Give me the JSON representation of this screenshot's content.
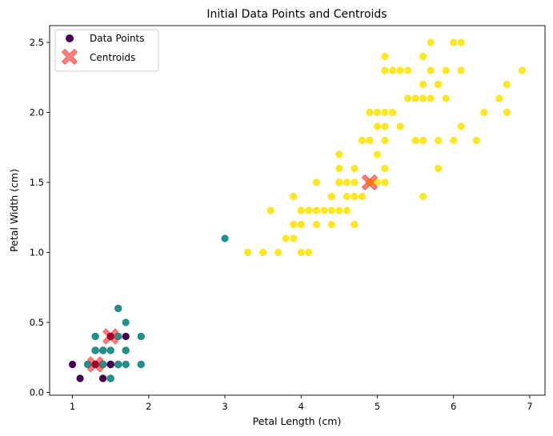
{
  "chart_data": {
    "type": "scatter",
    "title": "Initial Data Points and Centroids",
    "xlabel": "Petal Length (cm)",
    "ylabel": "Petal Width (cm)",
    "xlim": [
      0.7,
      7.2
    ],
    "ylim": [
      -0.02,
      2.62
    ],
    "xticks": [
      1,
      2,
      3,
      4,
      5,
      6,
      7
    ],
    "yticks": [
      0.0,
      0.5,
      1.0,
      1.5,
      2.0,
      2.5
    ],
    "xtick_labels": [
      "1",
      "2",
      "3",
      "4",
      "5",
      "6",
      "7"
    ],
    "ytick_labels": [
      "0.0",
      "0.5",
      "1.0",
      "1.5",
      "2.0",
      "2.5"
    ],
    "grid": false,
    "legend": {
      "placement": "top-left",
      "entries": [
        {
          "label": "Data Points",
          "marker": "circle",
          "color": "#440154"
        },
        {
          "label": "Centroids",
          "marker": "x",
          "color": "#ff0000"
        }
      ]
    },
    "colors": {
      "cluster_0": "#440154",
      "cluster_1": "#21918c",
      "cluster_2": "#fde725",
      "centroid": "#ff0000"
    },
    "series": [
      {
        "cluster": 0,
        "color": "#440154",
        "points": [
          [
            1.4,
            0.2
          ],
          [
            1.4,
            0.2
          ],
          [
            1.3,
            0.2
          ],
          [
            1.5,
            0.2
          ],
          [
            1.4,
            0.2
          ],
          [
            1.7,
            0.4
          ],
          [
            1.4,
            0.3
          ],
          [
            1.5,
            0.2
          ],
          [
            1.4,
            0.2
          ],
          [
            1.5,
            0.1
          ],
          [
            1.5,
            0.2
          ],
          [
            1.6,
            0.2
          ],
          [
            1.4,
            0.1
          ],
          [
            1.1,
            0.1
          ],
          [
            1.2,
            0.2
          ],
          [
            1.5,
            0.4
          ],
          [
            1.3,
            0.4
          ],
          [
            1.4,
            0.3
          ],
          [
            1.7,
            0.3
          ],
          [
            1.5,
            0.3
          ],
          [
            1.7,
            0.2
          ],
          [
            1.5,
            0.4
          ],
          [
            1.0,
            0.2
          ],
          [
            1.9,
            0.2
          ],
          [
            1.6,
            0.2
          ],
          [
            1.6,
            0.4
          ],
          [
            1.5,
            0.2
          ],
          [
            1.4,
            0.2
          ],
          [
            1.6,
            0.2
          ],
          [
            1.5,
            0.4
          ],
          [
            1.5,
            0.1
          ],
          [
            1.4,
            0.2
          ],
          [
            1.2,
            0.2
          ],
          [
            1.3,
            0.2
          ],
          [
            1.4,
            0.1
          ],
          [
            1.3,
            0.2
          ],
          [
            1.5,
            0.2
          ],
          [
            1.3,
            0.3
          ],
          [
            1.3,
            0.3
          ],
          [
            1.3,
            0.2
          ],
          [
            1.6,
            0.6
          ],
          [
            1.9,
            0.4
          ],
          [
            1.4,
            0.3
          ],
          [
            1.6,
            0.2
          ],
          [
            1.4,
            0.2
          ],
          [
            1.5,
            0.2
          ],
          [
            1.4,
            0.2
          ]
        ]
      },
      {
        "cluster": 1,
        "color": "#21918c",
        "points": [
          [
            1.6,
            0.2
          ],
          [
            1.4,
            0.2
          ],
          [
            1.2,
            0.2
          ],
          [
            1.7,
            0.5
          ],
          [
            1.9,
            0.2
          ],
          [
            1.6,
            0.4
          ],
          [
            1.5,
            0.1
          ],
          [
            1.7,
            0.3
          ],
          [
            1.5,
            0.3
          ],
          [
            1.3,
            0.4
          ],
          [
            1.6,
            0.6
          ],
          [
            1.9,
            0.4
          ],
          [
            1.7,
            0.2
          ],
          [
            3.0,
            1.1
          ],
          [
            1.4,
            0.3
          ],
          [
            1.3,
            0.3
          ]
        ]
      },
      {
        "cluster": 2,
        "color": "#fde725",
        "points": [
          [
            4.7,
            1.4
          ],
          [
            4.5,
            1.5
          ],
          [
            4.9,
            1.5
          ],
          [
            4.0,
            1.3
          ],
          [
            4.6,
            1.5
          ],
          [
            4.5,
            1.3
          ],
          [
            4.7,
            1.6
          ],
          [
            3.3,
            1.0
          ],
          [
            4.6,
            1.3
          ],
          [
            3.9,
            1.4
          ],
          [
            3.5,
            1.0
          ],
          [
            4.2,
            1.5
          ],
          [
            4.0,
            1.0
          ],
          [
            4.7,
            1.4
          ],
          [
            3.6,
            1.3
          ],
          [
            4.4,
            1.4
          ],
          [
            4.5,
            1.5
          ],
          [
            4.1,
            1.0
          ],
          [
            4.5,
            1.5
          ],
          [
            3.9,
            1.1
          ],
          [
            4.8,
            1.8
          ],
          [
            4.0,
            1.3
          ],
          [
            4.9,
            1.5
          ],
          [
            4.7,
            1.2
          ],
          [
            4.3,
            1.3
          ],
          [
            4.4,
            1.4
          ],
          [
            4.8,
            1.4
          ],
          [
            5.0,
            1.7
          ],
          [
            4.5,
            1.5
          ],
          [
            3.5,
            1.0
          ],
          [
            3.8,
            1.1
          ],
          [
            3.7,
            1.0
          ],
          [
            3.9,
            1.2
          ],
          [
            5.1,
            1.6
          ],
          [
            4.5,
            1.5
          ],
          [
            4.5,
            1.6
          ],
          [
            4.7,
            1.5
          ],
          [
            4.4,
            1.3
          ],
          [
            4.1,
            1.3
          ],
          [
            4.0,
            1.3
          ],
          [
            4.4,
            1.2
          ],
          [
            4.6,
            1.4
          ],
          [
            4.0,
            1.2
          ],
          [
            3.3,
            1.0
          ],
          [
            4.2,
            1.3
          ],
          [
            4.2,
            1.2
          ],
          [
            4.2,
            1.3
          ],
          [
            4.3,
            1.3
          ],
          [
            4.1,
            1.3
          ],
          [
            6.0,
            2.5
          ],
          [
            5.1,
            1.9
          ],
          [
            5.9,
            2.1
          ],
          [
            5.6,
            1.8
          ],
          [
            5.8,
            2.2
          ],
          [
            6.6,
            2.1
          ],
          [
            4.5,
            1.7
          ],
          [
            6.3,
            1.8
          ],
          [
            5.8,
            1.8
          ],
          [
            6.1,
            2.5
          ],
          [
            5.1,
            2.0
          ],
          [
            5.3,
            1.9
          ],
          [
            5.5,
            2.1
          ],
          [
            5.0,
            2.0
          ],
          [
            5.1,
            2.4
          ],
          [
            5.3,
            2.3
          ],
          [
            5.5,
            1.8
          ],
          [
            6.7,
            2.2
          ],
          [
            6.9,
            2.3
          ],
          [
            5.0,
            1.5
          ],
          [
            5.7,
            2.3
          ],
          [
            4.9,
            2.0
          ],
          [
            6.7,
            2.0
          ],
          [
            4.9,
            1.8
          ],
          [
            5.7,
            2.1
          ],
          [
            6.0,
            1.8
          ],
          [
            4.8,
            1.8
          ],
          [
            4.9,
            1.8
          ],
          [
            5.6,
            2.1
          ],
          [
            5.8,
            1.6
          ],
          [
            6.1,
            1.9
          ],
          [
            6.4,
            2.0
          ],
          [
            5.6,
            2.2
          ],
          [
            5.1,
            1.5
          ],
          [
            5.6,
            1.4
          ],
          [
            6.1,
            2.3
          ],
          [
            5.6,
            2.4
          ],
          [
            5.5,
            1.8
          ],
          [
            4.8,
            1.8
          ],
          [
            5.4,
            2.1
          ],
          [
            5.6,
            2.4
          ],
          [
            5.1,
            2.3
          ],
          [
            5.9,
            2.3
          ],
          [
            5.7,
            2.5
          ],
          [
            5.2,
            2.3
          ],
          [
            5.0,
            1.9
          ],
          [
            5.2,
            2.0
          ],
          [
            5.4,
            2.3
          ],
          [
            5.1,
            1.8
          ],
          [
            5.2,
            2.0
          ],
          [
            5.8,
            2.2
          ]
        ]
      }
    ],
    "centroids": [
      {
        "x": 1.3,
        "y": 0.2
      },
      {
        "x": 1.5,
        "y": 0.4
      },
      {
        "x": 4.9,
        "y": 1.5
      }
    ]
  }
}
